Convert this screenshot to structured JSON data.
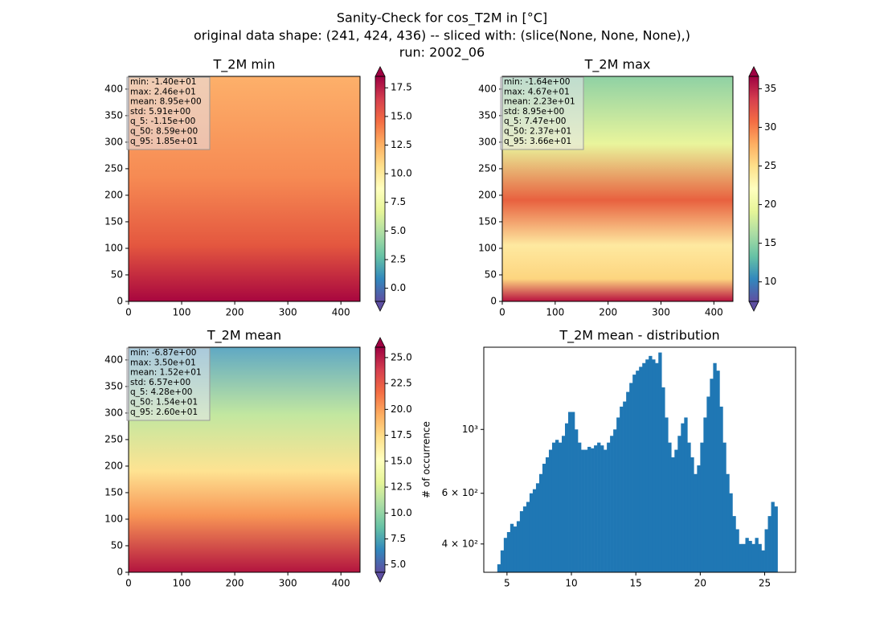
{
  "suptitle": [
    "Sanity-Check for cos_T2M in [°C]",
    "original data shape: (241, 424, 436) -- sliced with: (slice(None, None, None),)",
    "run: 2002_06"
  ],
  "chart_data": [
    {
      "type": "heatmap",
      "title": "T_2M min",
      "xlim": [
        0,
        436
      ],
      "ylim": [
        0,
        424
      ],
      "xticks": [
        0,
        100,
        200,
        300,
        400
      ],
      "yticks": [
        0,
        50,
        100,
        150,
        200,
        250,
        300,
        350,
        400
      ],
      "colormap": "Spectral_r",
      "clim": [
        -1.15,
        18.5
      ],
      "cticks": [
        {
          "value": 0,
          "label": "0.0"
        },
        2.5,
        {
          "value": 5,
          "label": "5.0"
        },
        7.5,
        {
          "value": 10,
          "label": "10.0"
        },
        12.5,
        {
          "value": 15,
          "label": "15.0"
        },
        17.5
      ],
      "stats": [
        "min: -1.40e+01",
        "max: 2.46e+01",
        "mean: 8.95e+00",
        "std: 5.91e+00",
        "q_5: -1.15e+00",
        "q_50: 8.59e+00",
        "q_95: 1.85e+01"
      ]
    },
    {
      "type": "heatmap",
      "title": "T_2M max",
      "xlim": [
        0,
        436
      ],
      "ylim": [
        0,
        424
      ],
      "xticks": [
        0,
        100,
        200,
        300,
        400
      ],
      "yticks": [
        0,
        50,
        100,
        150,
        200,
        250,
        300,
        350,
        400
      ],
      "colormap": "Spectral_r",
      "clim": [
        7.47,
        36.6
      ],
      "cticks": [
        10,
        15,
        20,
        25,
        30,
        35
      ],
      "stats": [
        "min: -1.64e+00",
        "max: 4.67e+01",
        "mean: 2.23e+01",
        "std: 8.95e+00",
        "q_5: 7.47e+00",
        "q_50: 2.37e+01",
        "q_95: 3.66e+01"
      ]
    },
    {
      "type": "heatmap",
      "title": "T_2M mean",
      "xlim": [
        0,
        436
      ],
      "ylim": [
        0,
        424
      ],
      "xticks": [
        0,
        100,
        200,
        300,
        400
      ],
      "yticks": [
        0,
        50,
        100,
        150,
        200,
        250,
        300,
        350,
        400
      ],
      "colormap": "Spectral_r",
      "clim": [
        4.28,
        26.0
      ],
      "cticks": [
        {
          "value": 5,
          "label": "5.0"
        },
        7.5,
        {
          "value": 10,
          "label": "10.0"
        },
        12.5,
        {
          "value": 15,
          "label": "15.0"
        },
        17.5,
        {
          "value": 20,
          "label": "20.0"
        },
        22.5,
        {
          "value": 25,
          "label": "25.0"
        }
      ],
      "stats": [
        "min: -6.87e+00",
        "max: 3.50e+01",
        "mean: 1.52e+01",
        "std: 6.57e+00",
        "q_5: 4.28e+00",
        "q_50: 1.54e+01",
        "q_95: 2.60e+01"
      ]
    },
    {
      "type": "histogram",
      "title": "T_2M mean - distribution",
      "ylabel": "# of occurrence",
      "color": "#1f77b4",
      "log_y": true,
      "xlim": [
        3.2,
        27.4
      ],
      "ylim": [
        319,
        1930
      ],
      "xticks": [
        5,
        10,
        15,
        20,
        25
      ],
      "yticks": [
        {
          "value": 400,
          "label": "4 × 10²"
        },
        {
          "value": 600,
          "label": "6 × 10²"
        },
        {
          "value": 1000,
          "label": "10³"
        }
      ],
      "bins": [
        4.25,
        4.5,
        4.75,
        5,
        5.25,
        5.5,
        5.75,
        6,
        6.25,
        6.5,
        6.75,
        7,
        7.25,
        7.5,
        7.75,
        8,
        8.25,
        8.5,
        8.75,
        9,
        9.25,
        9.5,
        9.75,
        10,
        10.25,
        10.5,
        10.75,
        11,
        11.25,
        11.5,
        11.75,
        12,
        12.25,
        12.5,
        12.75,
        13,
        13.25,
        13.5,
        13.75,
        14,
        14.25,
        14.5,
        14.75,
        15,
        15.25,
        15.5,
        15.75,
        16,
        16.25,
        16.5,
        16.75,
        17,
        17.25,
        17.5,
        17.75,
        18,
        18.25,
        18.5,
        18.75,
        19,
        19.25,
        19.5,
        19.75,
        20,
        20.25,
        20.5,
        20.75,
        21,
        21.25,
        21.5,
        21.75,
        22,
        22.25,
        22.5,
        22.75,
        23,
        23.25,
        23.5,
        23.75,
        24,
        24.25,
        24.5,
        24.75,
        25,
        25.25,
        25.5,
        25.75,
        26
      ],
      "counts": [
        340,
        380,
        420,
        440,
        470,
        460,
        480,
        520,
        540,
        560,
        600,
        620,
        650,
        700,
        760,
        800,
        850,
        900,
        920,
        900,
        950,
        1050,
        1150,
        1150,
        1000,
        900,
        850,
        850,
        870,
        860,
        880,
        900,
        880,
        850,
        900,
        950,
        1000,
        1100,
        1200,
        1250,
        1350,
        1450,
        1550,
        1600,
        1650,
        1700,
        1750,
        1800,
        1750,
        1700,
        1850,
        1400,
        1100,
        900,
        800,
        850,
        950,
        1050,
        1100,
        900,
        800,
        700,
        750,
        900,
        1100,
        1300,
        1500,
        1700,
        1600,
        1200,
        900,
        700,
        600,
        500,
        450,
        400,
        400,
        420,
        410,
        400,
        420,
        400,
        380,
        450,
        500,
        560,
        540
      ]
    }
  ]
}
